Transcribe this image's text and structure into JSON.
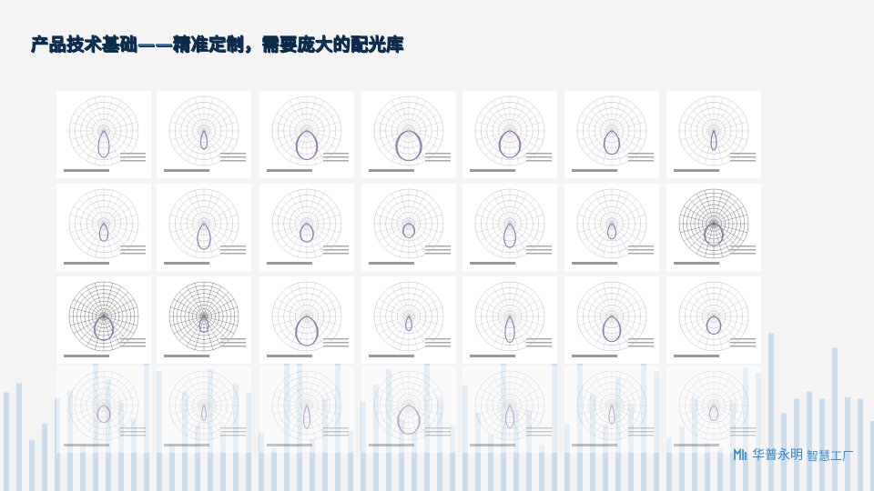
{
  "slide": {
    "title": "产品技术基础——精准定制，需要庞大的配光库"
  },
  "gallery": {
    "rows": 4,
    "columns": 7,
    "description_visible": false
  },
  "logo": {
    "brand": "华普永明",
    "tagline": "智慧工厂"
  },
  "colors": {
    "title": "#1f6fb5",
    "title_outline": "#0a2a4a",
    "bars": "#a9cbe6",
    "logo": "#2f86c9"
  }
}
